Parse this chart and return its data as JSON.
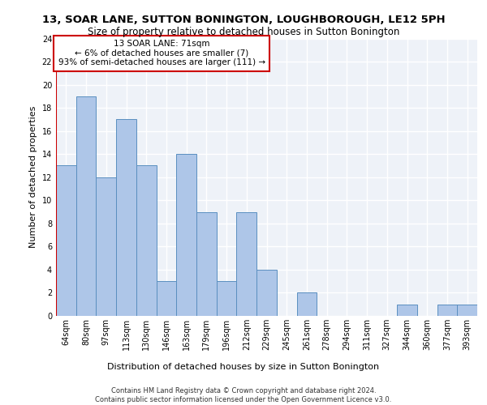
{
  "title_line1": "13, SOAR LANE, SUTTON BONINGTON, LOUGHBOROUGH, LE12 5PH",
  "title_line2": "Size of property relative to detached houses in Sutton Bonington",
  "xlabel": "Distribution of detached houses by size in Sutton Bonington",
  "ylabel": "Number of detached properties",
  "categories": [
    "64sqm",
    "80sqm",
    "97sqm",
    "113sqm",
    "130sqm",
    "146sqm",
    "163sqm",
    "179sqm",
    "196sqm",
    "212sqm",
    "229sqm",
    "245sqm",
    "261sqm",
    "278sqm",
    "294sqm",
    "311sqm",
    "327sqm",
    "344sqm",
    "360sqm",
    "377sqm",
    "393sqm"
  ],
  "values": [
    13,
    19,
    12,
    17,
    13,
    3,
    14,
    9,
    3,
    9,
    4,
    0,
    2,
    0,
    0,
    0,
    0,
    1,
    0,
    1,
    1
  ],
  "bar_color": "#aec6e8",
  "bar_edge_color": "#5a8fc0",
  "highlight_color": "#cc0000",
  "annotation_text": "13 SOAR LANE: 71sqm\n← 6% of detached houses are smaller (7)\n93% of semi-detached houses are larger (111) →",
  "annotation_box_color": "#ffffff",
  "annotation_box_edge": "#cc0000",
  "ylim": [
    0,
    24
  ],
  "yticks": [
    0,
    2,
    4,
    6,
    8,
    10,
    12,
    14,
    16,
    18,
    20,
    22,
    24
  ],
  "footnote": "Contains HM Land Registry data © Crown copyright and database right 2024.\nContains public sector information licensed under the Open Government Licence v3.0.",
  "bg_color": "#eef2f8",
  "grid_color": "#ffffff",
  "title_fontsize": 9.5,
  "subtitle_fontsize": 8.5,
  "tick_fontsize": 7,
  "label_fontsize": 8,
  "footnote_fontsize": 6
}
